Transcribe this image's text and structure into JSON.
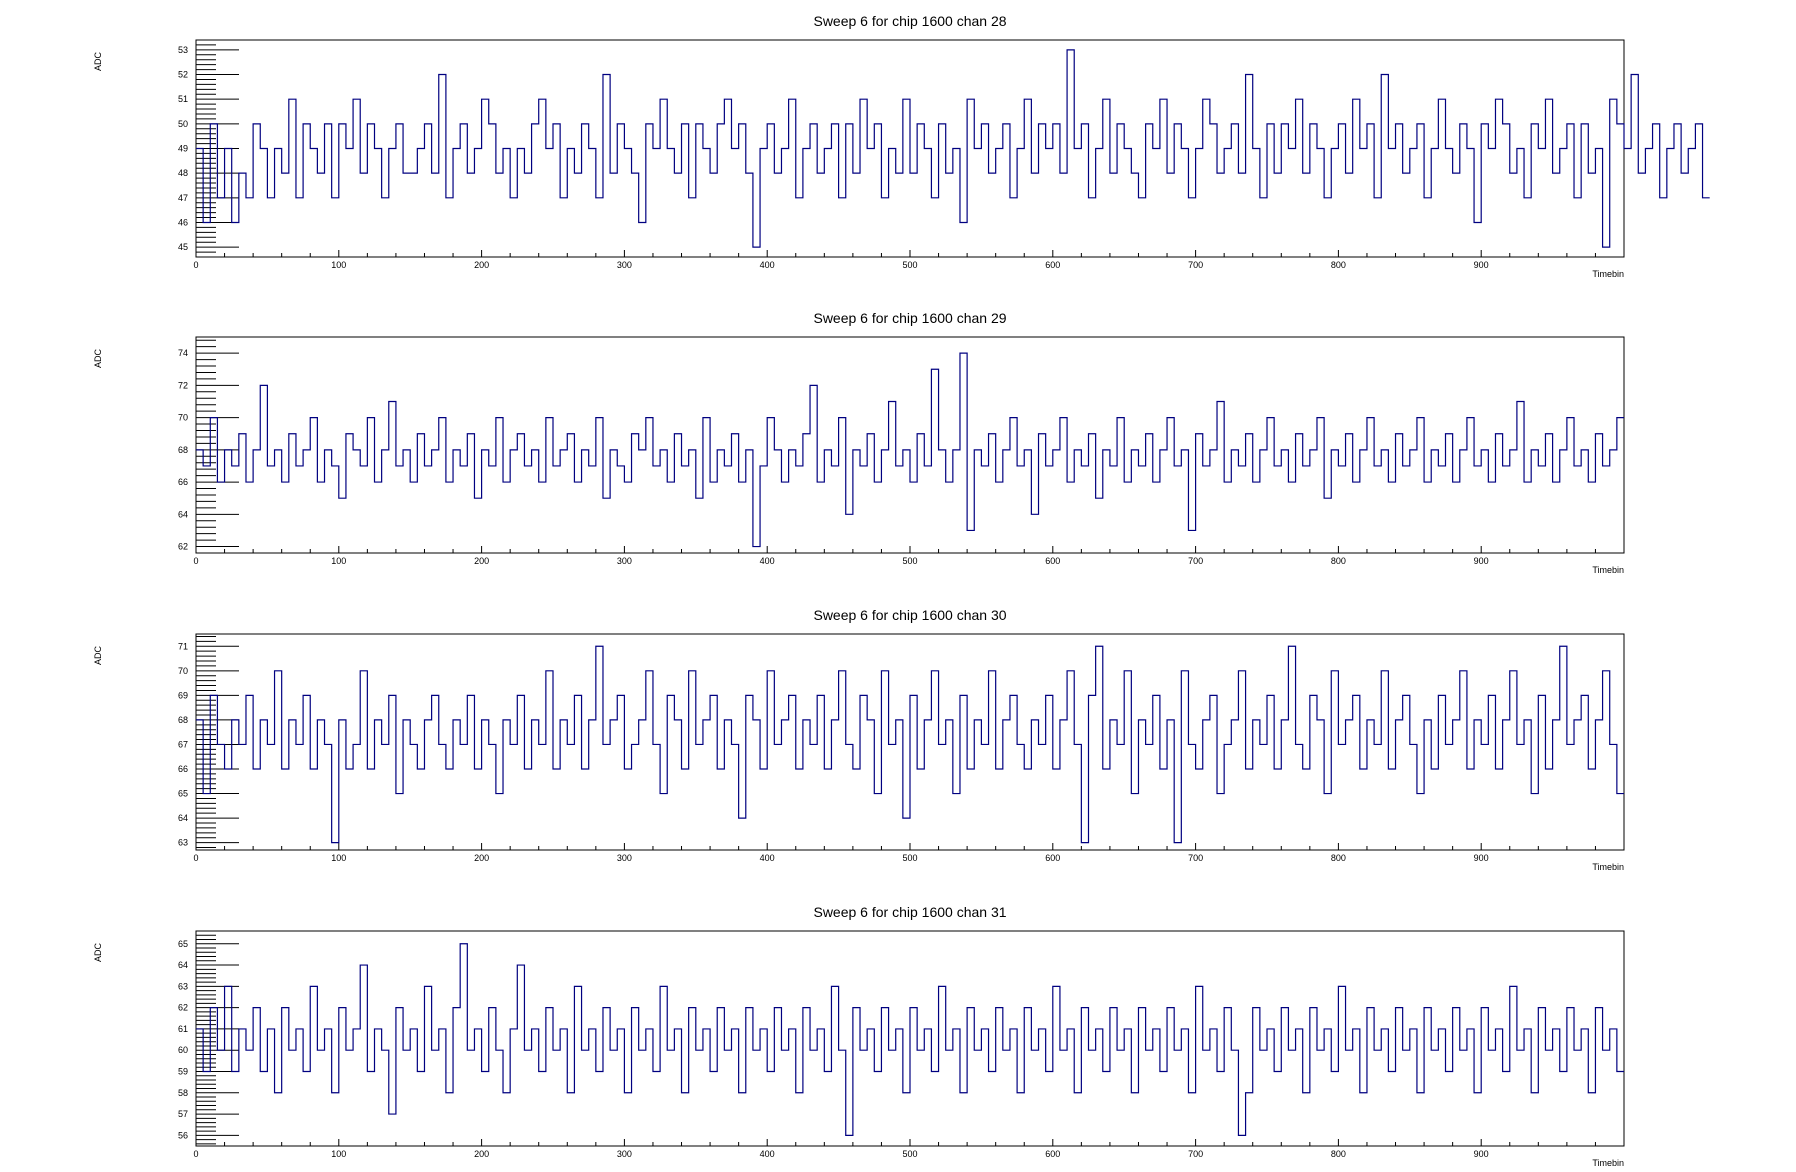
{
  "chart_data": [
    {
      "type": "line",
      "step": true,
      "title": "Sweep 6 for chip 1600 chan 28",
      "xlabel": "Timebin",
      "ylabel": "ADC",
      "xlim": [
        0,
        1000
      ],
      "ylim": [
        44.6,
        53.4
      ],
      "x_ticks": [
        0,
        100,
        200,
        300,
        400,
        500,
        600,
        700,
        800,
        900
      ],
      "y_ticks": [
        45,
        46,
        47,
        48,
        49,
        50,
        51,
        52,
        53
      ],
      "color": "#000080",
      "grid": false,
      "series": [
        {
          "x_start": 0,
          "x_step": 5,
          "values": [
            49,
            46,
            50,
            47,
            49,
            46,
            48,
            47,
            50,
            49,
            47,
            49,
            48,
            51,
            47,
            50,
            49,
            48,
            50,
            47,
            50,
            49,
            51,
            48,
            50,
            49,
            47,
            49,
            50,
            48,
            48,
            49,
            50,
            48,
            52,
            47,
            49,
            50,
            48,
            49,
            51,
            50,
            48,
            49,
            47,
            49,
            48,
            50,
            51,
            49,
            50,
            47,
            49,
            48,
            50,
            49,
            47,
            52,
            48,
            50,
            49,
            48,
            46,
            50,
            49,
            51,
            49,
            48,
            50,
            47,
            50,
            49,
            48,
            50,
            51,
            49,
            50,
            48,
            45,
            49,
            50,
            48,
            49,
            51,
            47,
            49,
            50,
            48,
            49,
            50,
            47,
            50,
            48,
            51,
            49,
            50,
            47,
            49,
            48,
            51,
            48,
            50,
            49,
            47,
            50,
            48,
            49,
            46,
            51,
            49,
            50,
            48,
            49,
            50,
            47,
            49,
            51,
            48,
            50,
            49,
            50,
            48,
            53,
            49,
            50,
            47,
            49,
            51,
            48,
            50,
            49,
            48,
            47,
            50,
            49,
            51,
            48,
            50,
            49,
            47,
            49,
            51,
            50,
            48,
            49,
            50,
            48,
            52,
            49,
            47,
            50,
            48,
            50,
            49,
            51,
            48,
            50,
            49,
            47,
            49,
            50,
            48,
            51,
            49,
            50,
            47,
            52,
            49,
            50,
            48,
            49,
            50,
            47,
            49,
            51,
            49,
            48,
            50,
            49,
            46,
            50,
            49,
            51,
            50,
            48,
            49,
            47,
            50,
            49,
            51,
            48,
            49,
            50,
            47,
            50,
            48,
            49,
            45,
            51,
            50,
            49,
            52,
            48,
            49,
            50,
            47,
            49,
            50,
            48,
            49,
            50,
            47
          ]
        }
      ]
    },
    {
      "type": "line",
      "step": true,
      "title": "Sweep 6 for chip 1600 chan 29",
      "xlabel": "Timebin",
      "ylabel": "ADC",
      "xlim": [
        0,
        1000
      ],
      "ylim": [
        61.6,
        75.0
      ],
      "x_ticks": [
        0,
        100,
        200,
        300,
        400,
        500,
        600,
        700,
        800,
        900
      ],
      "y_ticks": [
        62,
        64,
        66,
        68,
        70,
        72,
        74
      ],
      "color": "#000080",
      "grid": false,
      "series": [
        {
          "x_start": 0,
          "x_step": 5,
          "values": [
            68,
            67,
            70,
            66,
            68,
            67,
            69,
            66,
            68,
            72,
            67,
            68,
            66,
            69,
            67,
            68,
            70,
            66,
            68,
            67,
            65,
            69,
            68,
            67,
            70,
            66,
            68,
            71,
            67,
            68,
            66,
            69,
            67,
            68,
            70,
            66,
            68,
            67,
            69,
            65,
            68,
            67,
            70,
            66,
            68,
            69,
            67,
            68,
            66,
            70,
            67,
            68,
            69,
            66,
            68,
            67,
            70,
            65,
            68,
            67,
            66,
            69,
            68,
            70,
            67,
            68,
            66,
            69,
            67,
            68,
            65,
            70,
            66,
            68,
            67,
            69,
            66,
            68,
            62,
            67,
            70,
            68,
            66,
            68,
            67,
            69,
            72,
            66,
            68,
            67,
            70,
            64,
            68,
            67,
            69,
            66,
            68,
            71,
            67,
            68,
            66,
            69,
            67,
            73,
            68,
            66,
            68,
            74,
            63,
            68,
            67,
            69,
            66,
            68,
            70,
            67,
            68,
            64,
            69,
            67,
            68,
            70,
            66,
            68,
            67,
            69,
            65,
            68,
            67,
            70,
            66,
            68,
            67,
            69,
            66,
            68,
            70,
            67,
            68,
            63,
            69,
            67,
            68,
            71,
            66,
            68,
            67,
            69,
            66,
            68,
            70,
            67,
            68,
            66,
            69,
            67,
            68,
            70,
            65,
            68,
            67,
            69,
            66,
            68,
            70,
            67,
            68,
            66,
            69,
            67,
            68,
            70,
            66,
            68,
            67,
            69,
            66,
            68,
            70,
            67,
            68,
            66,
            69,
            67,
            68,
            71,
            66,
            68,
            67,
            69,
            66,
            68,
            70,
            67,
            68,
            66,
            69,
            67,
            68,
            70
          ]
        }
      ]
    },
    {
      "type": "line",
      "step": true,
      "title": "Sweep 6 for chip 1600 chan 30",
      "xlabel": "Timebin",
      "ylabel": "ADC",
      "xlim": [
        0,
        1000
      ],
      "ylim": [
        62.7,
        71.5
      ],
      "x_ticks": [
        0,
        100,
        200,
        300,
        400,
        500,
        600,
        700,
        800,
        900
      ],
      "y_ticks": [
        63,
        64,
        65,
        66,
        67,
        68,
        69,
        70,
        71
      ],
      "color": "#000080",
      "grid": false,
      "series": [
        {
          "x_start": 0,
          "x_step": 5,
          "values": [
            68,
            65,
            69,
            67,
            66,
            68,
            67,
            69,
            66,
            68,
            67,
            70,
            66,
            68,
            67,
            69,
            66,
            68,
            67,
            63,
            68,
            66,
            67,
            70,
            66,
            68,
            67,
            69,
            65,
            68,
            67,
            66,
            68,
            69,
            67,
            66,
            68,
            67,
            69,
            66,
            68,
            67,
            65,
            68,
            67,
            69,
            66,
            68,
            67,
            70,
            66,
            68,
            67,
            69,
            66,
            68,
            71,
            67,
            68,
            69,
            66,
            67,
            68,
            70,
            67,
            65,
            69,
            68,
            66,
            70,
            67,
            68,
            69,
            66,
            68,
            67,
            64,
            69,
            68,
            66,
            70,
            67,
            68,
            69,
            66,
            68,
            67,
            69,
            66,
            68,
            70,
            67,
            66,
            69,
            68,
            65,
            70,
            67,
            68,
            64,
            69,
            66,
            68,
            70,
            67,
            68,
            65,
            69,
            66,
            68,
            67,
            70,
            66,
            68,
            69,
            67,
            66,
            68,
            67,
            69,
            66,
            68,
            70,
            67,
            63,
            69,
            71,
            66,
            68,
            67,
            70,
            65,
            68,
            67,
            69,
            66,
            68,
            63,
            70,
            67,
            66,
            68,
            69,
            65,
            67,
            68,
            70,
            66,
            68,
            67,
            69,
            66,
            68,
            71,
            67,
            66,
            69,
            68,
            65,
            70,
            67,
            68,
            69,
            66,
            68,
            67,
            70,
            66,
            68,
            69,
            67,
            65,
            68,
            66,
            69,
            67,
            68,
            70,
            66,
            68,
            67,
            69,
            66,
            68,
            70,
            67,
            68,
            65,
            69,
            66,
            68,
            71,
            67,
            68,
            69,
            66,
            68,
            70,
            67,
            65
          ]
        }
      ]
    },
    {
      "type": "line",
      "step": true,
      "title": "Sweep 6 for chip 1600 chan 31",
      "xlabel": "Timebin",
      "ylabel": "ADC",
      "xlim": [
        0,
        1000
      ],
      "ylim": [
        55.5,
        65.6
      ],
      "x_ticks": [
        0,
        100,
        200,
        300,
        400,
        500,
        600,
        700,
        800,
        900
      ],
      "y_ticks": [
        56,
        57,
        58,
        59,
        60,
        61,
        62,
        63,
        64,
        65
      ],
      "color": "#000080",
      "grid": false,
      "series": [
        {
          "x_start": 0,
          "x_step": 5,
          "values": [
            61,
            59,
            62,
            60,
            63,
            59,
            61,
            60,
            62,
            59,
            61,
            58,
            62,
            60,
            61,
            59,
            63,
            60,
            61,
            58,
            62,
            60,
            61,
            64,
            59,
            61,
            60,
            57,
            62,
            60,
            61,
            59,
            63,
            60,
            61,
            58,
            62,
            65,
            60,
            61,
            59,
            62,
            60,
            58,
            61,
            64,
            60,
            61,
            59,
            62,
            60,
            61,
            58,
            63,
            60,
            61,
            59,
            62,
            60,
            61,
            58,
            62,
            60,
            61,
            59,
            63,
            60,
            61,
            58,
            62,
            60,
            61,
            59,
            62,
            60,
            61,
            58,
            62,
            60,
            61,
            59,
            62,
            60,
            61,
            58,
            62,
            60,
            61,
            59,
            63,
            60,
            56,
            62,
            60,
            61,
            59,
            62,
            60,
            61,
            58,
            62,
            60,
            61,
            59,
            63,
            60,
            61,
            58,
            62,
            60,
            61,
            59,
            62,
            60,
            61,
            58,
            62,
            60,
            61,
            59,
            63,
            60,
            61,
            58,
            62,
            60,
            61,
            59,
            62,
            60,
            61,
            58,
            62,
            60,
            61,
            59,
            62,
            60,
            61,
            58,
            63,
            60,
            61,
            59,
            62,
            60,
            56,
            58,
            62,
            60,
            61,
            59,
            62,
            60,
            61,
            58,
            62,
            60,
            61,
            59,
            63,
            60,
            61,
            58,
            62,
            60,
            61,
            59,
            62,
            60,
            61,
            58,
            62,
            60,
            61,
            59,
            62,
            60,
            61,
            58,
            62,
            60,
            61,
            59,
            63,
            60,
            61,
            58,
            62,
            60,
            61,
            59,
            62,
            60,
            61,
            58,
            62,
            60,
            61,
            59
          ]
        }
      ]
    }
  ]
}
